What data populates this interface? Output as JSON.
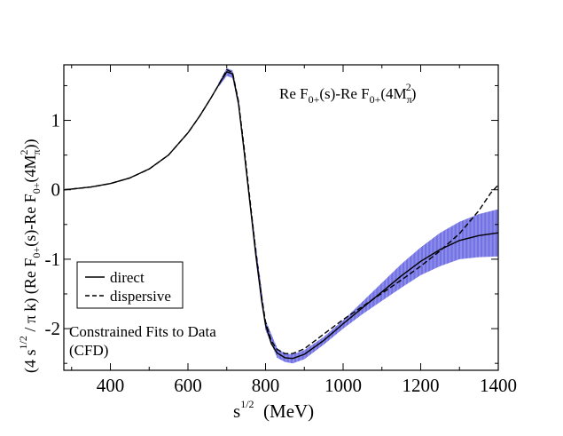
{
  "chart_data": {
    "type": "line",
    "xlabel": {
      "main": "s",
      "sup": "1/2",
      "rest": "  (MeV)"
    },
    "ylabel": {
      "p1": "(4 s",
      "p1_sup": "1/2",
      "p2": " / π k) (Re F",
      "p2_sub": "0+",
      "p3": "(s)-Re F",
      "p3_sub": "0+",
      "p4": "(4M",
      "p4_sub": "π",
      "p4_sup": "2",
      "p5": "))"
    },
    "inset_title": {
      "p1": "Re F",
      "p1_sub": "0+",
      "p2": "(s)-Re F",
      "p2_sub": "0+",
      "p3": "(4M",
      "p3_sub": "π",
      "p3_sup": "2",
      "p4": ")"
    },
    "xlim": [
      280,
      1400
    ],
    "ylim": [
      -2.6,
      1.8
    ],
    "x_ticks": [
      400,
      600,
      800,
      1000,
      1200,
      1400
    ],
    "y_ticks": [
      -2,
      -1,
      0,
      1
    ],
    "x_tick_labels": [
      "400",
      "600",
      "800",
      "1000",
      "1200",
      "1400"
    ],
    "y_tick_labels": [
      "-2",
      "-1",
      "0",
      "1"
    ],
    "legend": {
      "position": "lower-left",
      "entries": [
        {
          "label": "direct",
          "style": "solid"
        },
        {
          "label": "dispersive",
          "style": "dashed"
        }
      ]
    },
    "annotation": {
      "line1": "Constrained Fits to Data",
      "line2": "(CFD)"
    },
    "band_color": "#3b3bd9",
    "series": [
      {
        "name": "direct",
        "style": "solid",
        "x": [
          280,
          300,
          350,
          400,
          450,
          500,
          550,
          600,
          630,
          660,
          680,
          700,
          715,
          730,
          745,
          760,
          775,
          790,
          800,
          815,
          830,
          850,
          870,
          900,
          950,
          1000,
          1050,
          1100,
          1150,
          1200,
          1250,
          1300,
          1350,
          1400
        ],
        "y": [
          0.0,
          0.01,
          0.04,
          0.09,
          0.17,
          0.3,
          0.5,
          0.82,
          1.06,
          1.33,
          1.52,
          1.7,
          1.67,
          1.25,
          0.55,
          -0.2,
          -0.95,
          -1.6,
          -1.95,
          -2.22,
          -2.35,
          -2.42,
          -2.43,
          -2.37,
          -2.17,
          -1.93,
          -1.7,
          -1.47,
          -1.24,
          -1.03,
          -0.86,
          -0.73,
          -0.66,
          -0.62
        ]
      },
      {
        "name": "dispersive",
        "style": "dashed",
        "x": [
          280,
          300,
          350,
          400,
          450,
          500,
          550,
          600,
          630,
          660,
          680,
          700,
          715,
          730,
          745,
          760,
          775,
          790,
          800,
          815,
          830,
          850,
          870,
          900,
          950,
          1000,
          1050,
          1100,
          1150,
          1200,
          1250,
          1300,
          1350,
          1380,
          1400
        ],
        "y": [
          0.0,
          0.01,
          0.04,
          0.09,
          0.17,
          0.3,
          0.5,
          0.82,
          1.06,
          1.33,
          1.52,
          1.73,
          1.69,
          1.28,
          0.6,
          -0.15,
          -0.9,
          -1.55,
          -1.9,
          -2.18,
          -2.3,
          -2.36,
          -2.36,
          -2.29,
          -2.08,
          -1.87,
          -1.68,
          -1.49,
          -1.3,
          -1.1,
          -0.88,
          -0.63,
          -0.3,
          -0.05,
          0.07
        ]
      }
    ],
    "band": {
      "name": "direct uncertainty",
      "x": [
        680,
        700,
        715,
        730,
        760,
        800,
        830,
        850,
        870,
        900,
        950,
        1000,
        1050,
        1100,
        1150,
        1200,
        1250,
        1300,
        1350,
        1400
      ],
      "upper": [
        1.55,
        1.75,
        1.72,
        1.3,
        -0.15,
        -1.88,
        -2.28,
        -2.36,
        -2.37,
        -2.31,
        -2.12,
        -1.88,
        -1.61,
        -1.34,
        -1.07,
        -0.83,
        -0.62,
        -0.46,
        -0.35,
        -0.28
      ],
      "lower": [
        1.49,
        1.64,
        1.61,
        1.2,
        -0.25,
        -2.02,
        -2.42,
        -2.48,
        -2.5,
        -2.44,
        -2.23,
        -2.0,
        -1.79,
        -1.6,
        -1.41,
        -1.23,
        -1.1,
        -1.0,
        -0.97,
        -0.96
      ]
    }
  }
}
